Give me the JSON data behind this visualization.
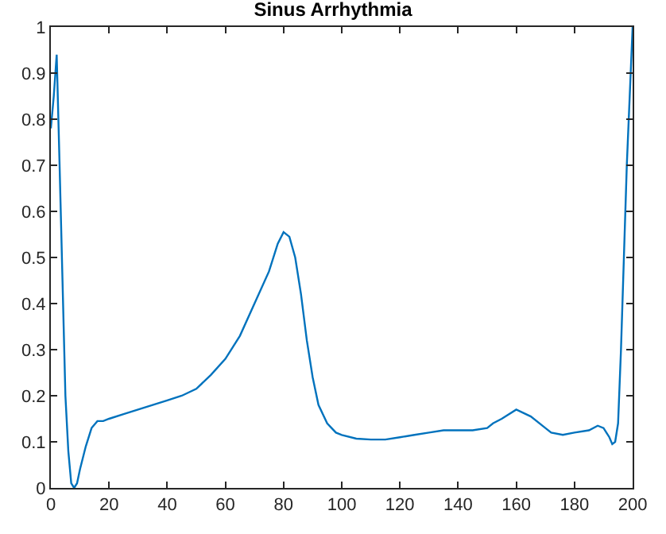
{
  "chart_data": {
    "type": "line",
    "title": "Sinus Arrhythmia",
    "x": [
      0,
      1,
      2,
      3,
      4,
      5,
      6,
      7,
      8,
      9,
      10,
      12,
      14,
      16,
      18,
      20,
      25,
      30,
      35,
      40,
      45,
      50,
      55,
      60,
      65,
      70,
      75,
      78,
      80,
      82,
      84,
      86,
      88,
      90,
      92,
      95,
      98,
      100,
      105,
      110,
      115,
      120,
      125,
      130,
      135,
      140,
      145,
      150,
      152,
      155,
      160,
      165,
      170,
      172,
      176,
      180,
      185,
      188,
      190,
      192,
      193,
      194,
      195,
      196,
      197,
      198,
      199,
      200
    ],
    "series": [
      {
        "color": "#0072bd",
        "values": [
          0.78,
          0.85,
          0.94,
          0.7,
          0.45,
          0.2,
          0.08,
          0.01,
          0.0,
          0.01,
          0.04,
          0.09,
          0.13,
          0.145,
          0.145,
          0.15,
          0.16,
          0.17,
          0.18,
          0.19,
          0.2,
          0.215,
          0.245,
          0.28,
          0.33,
          0.4,
          0.47,
          0.53,
          0.555,
          0.545,
          0.5,
          0.42,
          0.32,
          0.24,
          0.18,
          0.14,
          0.12,
          0.115,
          0.107,
          0.105,
          0.105,
          0.11,
          0.115,
          0.12,
          0.125,
          0.125,
          0.125,
          0.13,
          0.14,
          0.15,
          0.17,
          0.155,
          0.13,
          0.12,
          0.115,
          0.12,
          0.125,
          0.135,
          0.13,
          0.11,
          0.095,
          0.1,
          0.14,
          0.3,
          0.5,
          0.7,
          0.85,
          1.0
        ]
      }
    ],
    "xlim": [
      0,
      200
    ],
    "xticks": [
      0,
      20,
      40,
      60,
      80,
      100,
      120,
      140,
      160,
      180,
      200
    ],
    "ylim": [
      0,
      1
    ],
    "yticks": [
      0,
      0.1,
      0.2,
      0.3,
      0.4,
      0.5,
      0.6,
      0.7,
      0.8,
      0.9,
      1
    ]
  }
}
